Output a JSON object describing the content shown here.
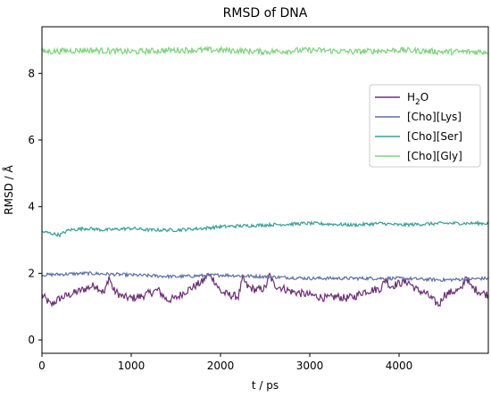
{
  "chart_data": {
    "type": "line",
    "title": "RMSD of DNA",
    "xlabel": "t / ps",
    "ylabel": "RMSD / Å",
    "xlim": [
      0,
      5000
    ],
    "ylim": [
      -0.4,
      9.4
    ],
    "xticks": [
      0,
      1000,
      2000,
      3000,
      4000
    ],
    "yticks": [
      0,
      2,
      4,
      6,
      8
    ],
    "grid": false,
    "legend_position": "right",
    "series": [
      {
        "name": "H2O",
        "label_main": "H",
        "label_sub": "2",
        "label_tail": "O",
        "color": "#6b3074",
        "points": [
          [
            0,
            1.35
          ],
          [
            100,
            1.05
          ],
          [
            200,
            1.25
          ],
          [
            300,
            1.35
          ],
          [
            400,
            1.45
          ],
          [
            500,
            1.55
          ],
          [
            600,
            1.65
          ],
          [
            700,
            1.4
          ],
          [
            750,
            1.9
          ],
          [
            800,
            1.5
          ],
          [
            900,
            1.3
          ],
          [
            1000,
            1.25
          ],
          [
            1100,
            1.3
          ],
          [
            1200,
            1.4
          ],
          [
            1300,
            1.5
          ],
          [
            1400,
            1.2
          ],
          [
            1500,
            1.25
          ],
          [
            1600,
            1.45
          ],
          [
            1700,
            1.6
          ],
          [
            1800,
            1.75
          ],
          [
            1850,
            1.95
          ],
          [
            1900,
            1.9
          ],
          [
            1950,
            1.7
          ],
          [
            2000,
            1.45
          ],
          [
            2100,
            1.35
          ],
          [
            2200,
            1.3
          ],
          [
            2250,
            1.85
          ],
          [
            2300,
            1.6
          ],
          [
            2400,
            1.5
          ],
          [
            2500,
            1.55
          ],
          [
            2550,
            1.95
          ],
          [
            2600,
            1.65
          ],
          [
            2700,
            1.55
          ],
          [
            2800,
            1.45
          ],
          [
            2900,
            1.4
          ],
          [
            3000,
            1.35
          ],
          [
            3100,
            1.3
          ],
          [
            3200,
            1.25
          ],
          [
            3300,
            1.3
          ],
          [
            3400,
            1.25
          ],
          [
            3500,
            1.3
          ],
          [
            3600,
            1.45
          ],
          [
            3700,
            1.5
          ],
          [
            3800,
            1.55
          ],
          [
            3850,
            1.85
          ],
          [
            3900,
            1.6
          ],
          [
            4000,
            1.7
          ],
          [
            4100,
            1.75
          ],
          [
            4200,
            1.5
          ],
          [
            4300,
            1.4
          ],
          [
            4400,
            1.15
          ],
          [
            4450,
            1.05
          ],
          [
            4500,
            1.35
          ],
          [
            4600,
            1.45
          ],
          [
            4700,
            1.5
          ],
          [
            4750,
            1.95
          ],
          [
            4800,
            1.6
          ],
          [
            4900,
            1.45
          ],
          [
            5000,
            1.35
          ]
        ]
      },
      {
        "name": "[Cho][Lys]",
        "color": "#5e6fa3",
        "points": [
          [
            0,
            1.95
          ],
          [
            500,
            2.0
          ],
          [
            1000,
            1.95
          ],
          [
            1500,
            1.9
          ],
          [
            2000,
            1.95
          ],
          [
            2500,
            1.9
          ],
          [
            3000,
            1.85
          ],
          [
            3500,
            1.85
          ],
          [
            4000,
            1.85
          ],
          [
            4500,
            1.8
          ],
          [
            5000,
            1.85
          ]
        ]
      },
      {
        "name": "[Cho][Ser]",
        "color": "#3c9e98",
        "points": [
          [
            0,
            3.25
          ],
          [
            100,
            3.2
          ],
          [
            200,
            3.15
          ],
          [
            300,
            3.3
          ],
          [
            500,
            3.35
          ],
          [
            700,
            3.3
          ],
          [
            1000,
            3.35
          ],
          [
            1200,
            3.3
          ],
          [
            1500,
            3.3
          ],
          [
            1800,
            3.35
          ],
          [
            2000,
            3.4
          ],
          [
            2500,
            3.45
          ],
          [
            3000,
            3.5
          ],
          [
            3500,
            3.45
          ],
          [
            3800,
            3.5
          ],
          [
            4000,
            3.45
          ],
          [
            4500,
            3.5
          ],
          [
            5000,
            3.5
          ]
        ]
      },
      {
        "name": "[Cho][Gly]",
        "color": "#7fd27f",
        "points": [
          [
            0,
            8.65
          ],
          [
            500,
            8.7
          ],
          [
            1000,
            8.65
          ],
          [
            1500,
            8.7
          ],
          [
            2000,
            8.7
          ],
          [
            2500,
            8.65
          ],
          [
            3000,
            8.7
          ],
          [
            3500,
            8.65
          ],
          [
            4000,
            8.7
          ],
          [
            4500,
            8.65
          ],
          [
            5000,
            8.65
          ]
        ]
      }
    ]
  }
}
